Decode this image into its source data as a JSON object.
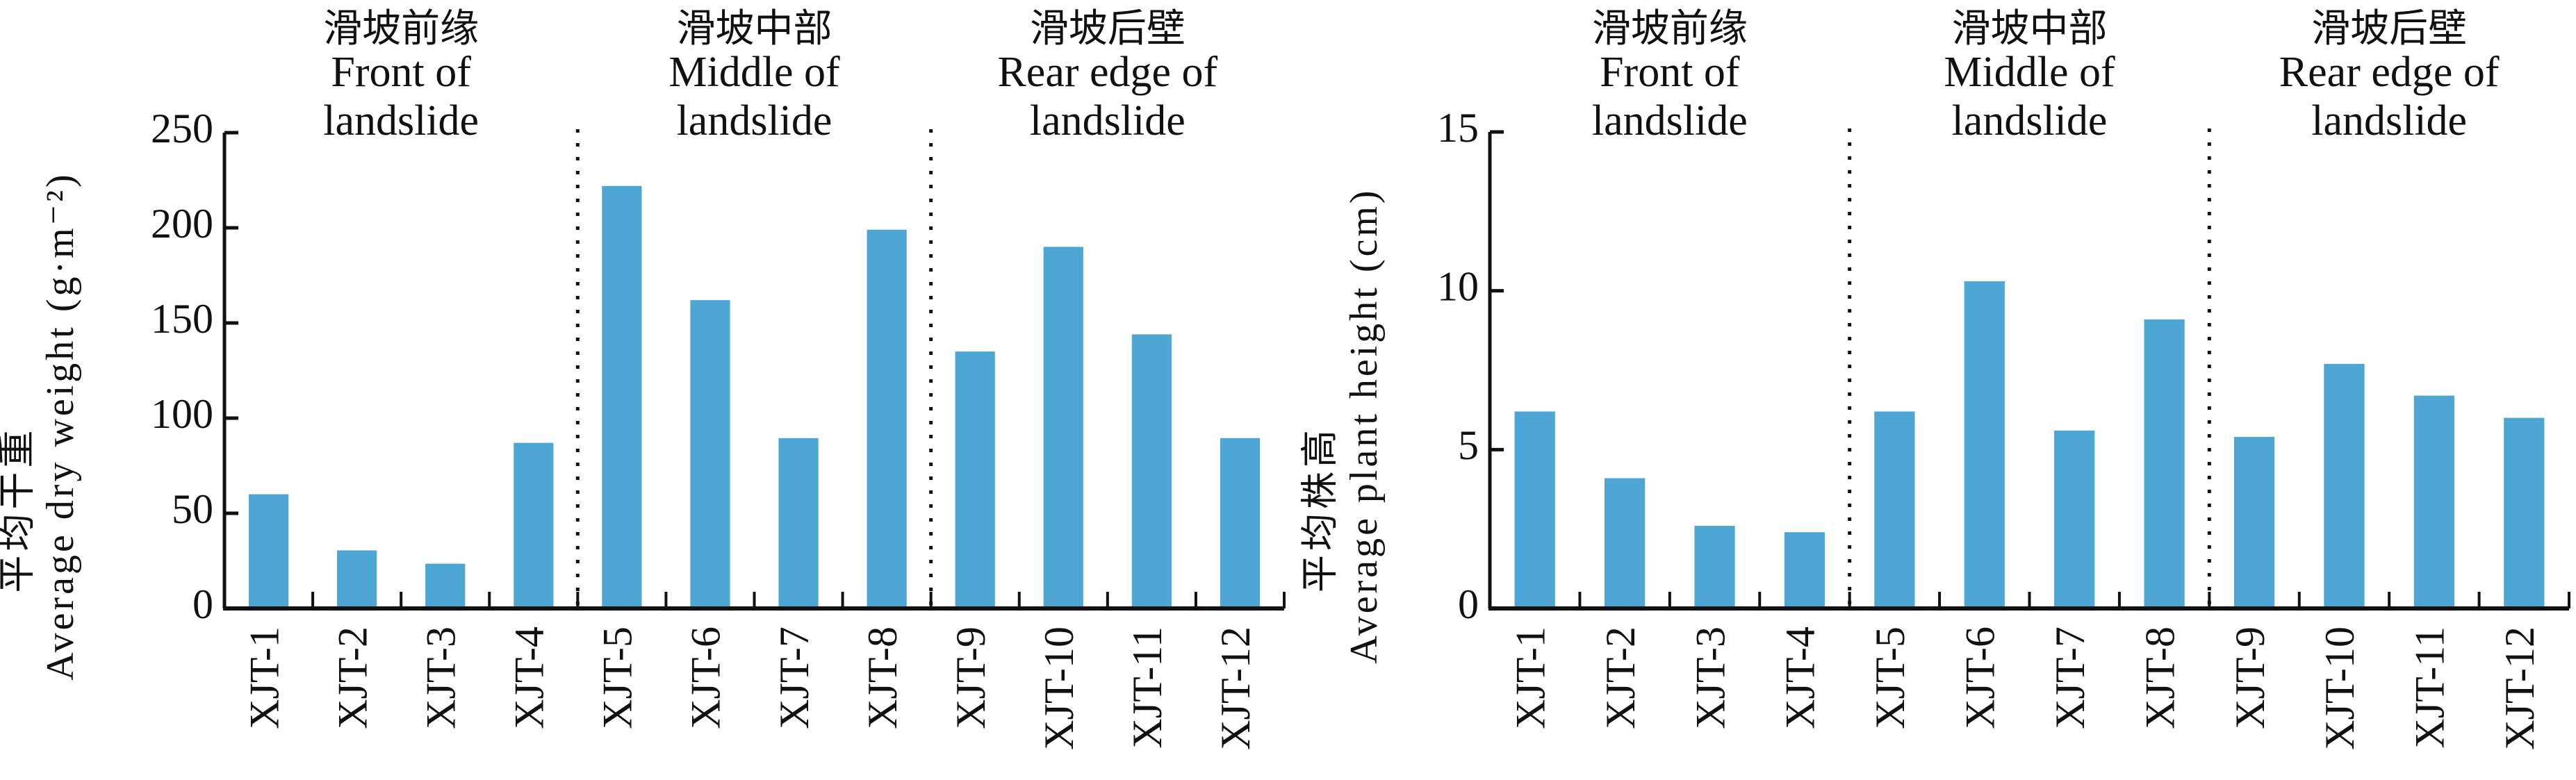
{
  "chart_data": [
    {
      "type": "bar",
      "title": "",
      "xlabel": "",
      "ylabel_cn": "平均干重",
      "ylabel": "Average dry weight (g·m⁻²)",
      "ylim": [
        0,
        250
      ],
      "yticks": [
        0,
        50,
        100,
        150,
        200,
        250
      ],
      "categories": [
        "XJT-1",
        "XJT-2",
        "XJT-3",
        "XJT-4",
        "XJT-5",
        "XJT-6",
        "XJT-7",
        "XJT-8",
        "XJT-9",
        "XJT-10",
        "XJT-11",
        "XJT-12"
      ],
      "values": [
        60,
        30.5,
        23.5,
        87,
        222,
        162,
        89.5,
        199,
        135,
        190,
        144,
        89.5
      ],
      "groups": [
        {
          "cn": "滑坡前缘",
          "en1": "Front of",
          "en2": "landslide"
        },
        {
          "cn": "滑坡中部",
          "en1": "Middle of",
          "en2": "landslide"
        },
        {
          "cn": "滑坡后壁",
          "en1": "Rear edge of",
          "en2": "landslide"
        }
      ],
      "bar_color": "#4da6d4",
      "grid": false
    },
    {
      "type": "bar",
      "title": "",
      "xlabel": "",
      "ylabel_cn": "平均株高",
      "ylabel": "Average plant height (cm)",
      "ylim": [
        0,
        15
      ],
      "yticks": [
        0,
        5,
        10,
        15
      ],
      "categories": [
        "XJT-1",
        "XJT-2",
        "XJT-3",
        "XJT-4",
        "XJT-5",
        "XJT-6",
        "XJT-7",
        "XJT-8",
        "XJT-9",
        "XJT-10",
        "XJT-11",
        "XJT-12"
      ],
      "values": [
        6.2,
        4.1,
        2.6,
        2.4,
        6.2,
        10.3,
        5.6,
        9.1,
        5.4,
        7.7,
        6.7,
        6.0
      ],
      "groups": [
        {
          "cn": "滑坡前缘",
          "en1": "Front of",
          "en2": "landslide"
        },
        {
          "cn": "滑坡中部",
          "en1": "Middle of",
          "en2": "landslide"
        },
        {
          "cn": "滑坡后壁",
          "en1": "Rear edge of",
          "en2": "landslide"
        }
      ],
      "bar_color": "#4da6d4",
      "grid": false
    }
  ]
}
